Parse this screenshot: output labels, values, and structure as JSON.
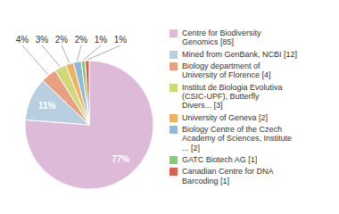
{
  "chart_data": {
    "type": "pie",
    "categories": [
      "Centre for Biodiversity\nGenomics [85]",
      "Mined from GenBank, NCBI [12]",
      "Biology department of\nUniversity of Florence [4]",
      "Institut de Biologia Evolutiva\n(CSIC-UPF), Butterfly\nDivers... [3]",
      "University of Geneva [2]",
      "Biology Centre of the Czech\nAcademy of Sciences, Institute\n... [2]",
      "GATC Biotech AG [1]",
      "Canadian Centre for DNA\nBarcoding [1]"
    ],
    "values": [
      77,
      11,
      4,
      3,
      2,
      2,
      1,
      1
    ],
    "value_labels": [
      "77%",
      "11%",
      "4%",
      "3%",
      "2%",
      "2%",
      "1%",
      "1%"
    ],
    "colors": [
      "#ddbbd8",
      "#b8cfe0",
      "#e8a080",
      "#d0d878",
      "#f0b060",
      "#90b8d8",
      "#8cc878",
      "#d86050"
    ],
    "data_labels": true,
    "legend": "right"
  }
}
